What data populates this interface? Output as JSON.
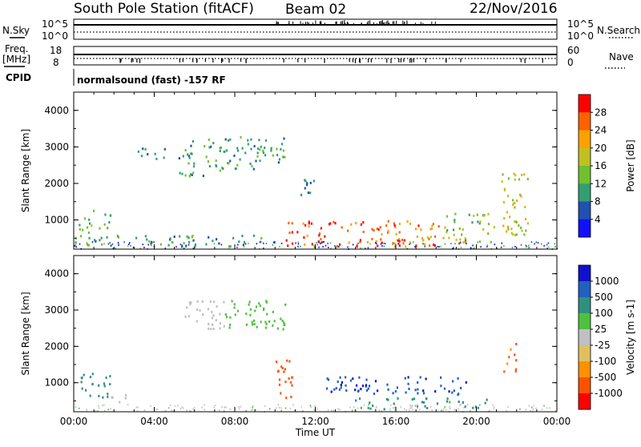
{
  "header": {
    "station": "South Pole Station (fitACF)",
    "beam": "Beam 02",
    "date": "22/Nov/2016"
  },
  "noise_panel": {
    "left_label": "N.Sky",
    "left_ticks": [
      "10^5",
      "10^0"
    ],
    "right_label": "N.Search",
    "right_ticks": [
      "10^5",
      "10^0"
    ]
  },
  "freq_panel": {
    "left_label_1": "Freq.",
    "left_label_2": "[MHz]",
    "left_ticks": [
      "18",
      "8"
    ],
    "right_label": "Nave",
    "right_ticks": [
      "60",
      "0"
    ]
  },
  "cpid_panel": {
    "label": "CPID",
    "text": "normalsound (fast) -157 RF"
  },
  "chart_data": [
    {
      "type": "heatmap",
      "name": "power",
      "ylabel": "Slant Range [km]",
      "xlabel": "",
      "yticks": [
        "1000",
        "2000",
        "3000",
        "4000"
      ],
      "ylim": [
        200,
        4500
      ],
      "xlim_hours": [
        0,
        24
      ],
      "colorbar": {
        "label": "Power [dB]",
        "ticks": [
          "4",
          "8",
          "12",
          "16",
          "20",
          "24",
          "28"
        ],
        "range": [
          0,
          30
        ],
        "colors": [
          "#1010ff",
          "#2050b0",
          "#30a070",
          "#70c030",
          "#c0c020",
          "#ffa000",
          "#ff6000",
          "#ff0000"
        ]
      },
      "regions": [
        {
          "t": [
            0.2,
            1.8
          ],
          "r": [
            600,
            1300
          ],
          "level": 12
        },
        {
          "t": [
            0.0,
            10.0
          ],
          "r": [
            300,
            600
          ],
          "level": 10
        },
        {
          "t": [
            3.0,
            4.5
          ],
          "r": [
            2700,
            3000
          ],
          "level": 8
        },
        {
          "t": [
            5.2,
            7.5
          ],
          "r": [
            2200,
            3300
          ],
          "level": 10
        },
        {
          "t": [
            7.5,
            10.5
          ],
          "r": [
            2400,
            3300
          ],
          "level": 10
        },
        {
          "t": [
            10.5,
            14.5
          ],
          "r": [
            300,
            1000
          ],
          "level": 26
        },
        {
          "t": [
            14.5,
            18.5
          ],
          "r": [
            300,
            1000
          ],
          "level": 22
        },
        {
          "t": [
            15.5,
            19.5
          ],
          "r": [
            300,
            500
          ],
          "level": 29
        },
        {
          "t": [
            18.5,
            21.0
          ],
          "r": [
            400,
            1200
          ],
          "level": 14
        },
        {
          "t": [
            21.2,
            22.6
          ],
          "r": [
            600,
            2300
          ],
          "level": 16
        },
        {
          "t": [
            11.0,
            12.0
          ],
          "r": [
            1700,
            2300
          ],
          "level": 8
        }
      ]
    },
    {
      "type": "heatmap",
      "name": "velocity",
      "ylabel": "Slant Range [km]",
      "xlabel": "Time UT",
      "yticks": [
        "1000",
        "2000",
        "3000",
        "4000"
      ],
      "xticks": [
        "00:00",
        "04:00",
        "08:00",
        "12:00",
        "16:00",
        "20:00",
        "00:00"
      ],
      "ylim": [
        200,
        4500
      ],
      "xlim_hours": [
        0,
        24
      ],
      "colorbar": {
        "label": "Velocity [m s-1]",
        "ticks": [
          "1000",
          "500",
          "100",
          "25",
          "-25",
          "-100",
          "-500",
          "-1000"
        ],
        "colors": [
          "#1010d0",
          "#2060c0",
          "#309080",
          "#50c040",
          "#c0c0c0",
          "#e0c060",
          "#ff9000",
          "#ff5000",
          "#ff0000"
        ]
      },
      "regions": [
        {
          "t": [
            0.2,
            1.8
          ],
          "r": [
            600,
            1300
          ],
          "level": 100
        },
        {
          "t": [
            1.5,
            3.0
          ],
          "r": [
            400,
            700
          ],
          "level": 0
        },
        {
          "t": [
            5.5,
            7.5
          ],
          "r": [
            2500,
            3300
          ],
          "level": 0
        },
        {
          "t": [
            7.5,
            10.5
          ],
          "r": [
            2500,
            3300
          ],
          "level": 30
        },
        {
          "t": [
            10.0,
            11.0
          ],
          "r": [
            600,
            1700
          ],
          "level": -500
        },
        {
          "t": [
            12.0,
            19.5
          ],
          "r": [
            700,
            1200
          ],
          "level": 600
        },
        {
          "t": [
            13.5,
            20.5
          ],
          "r": [
            300,
            600
          ],
          "level": 80
        },
        {
          "t": [
            21.3,
            22.0
          ],
          "r": [
            1300,
            2100
          ],
          "level": -400
        }
      ]
    }
  ]
}
